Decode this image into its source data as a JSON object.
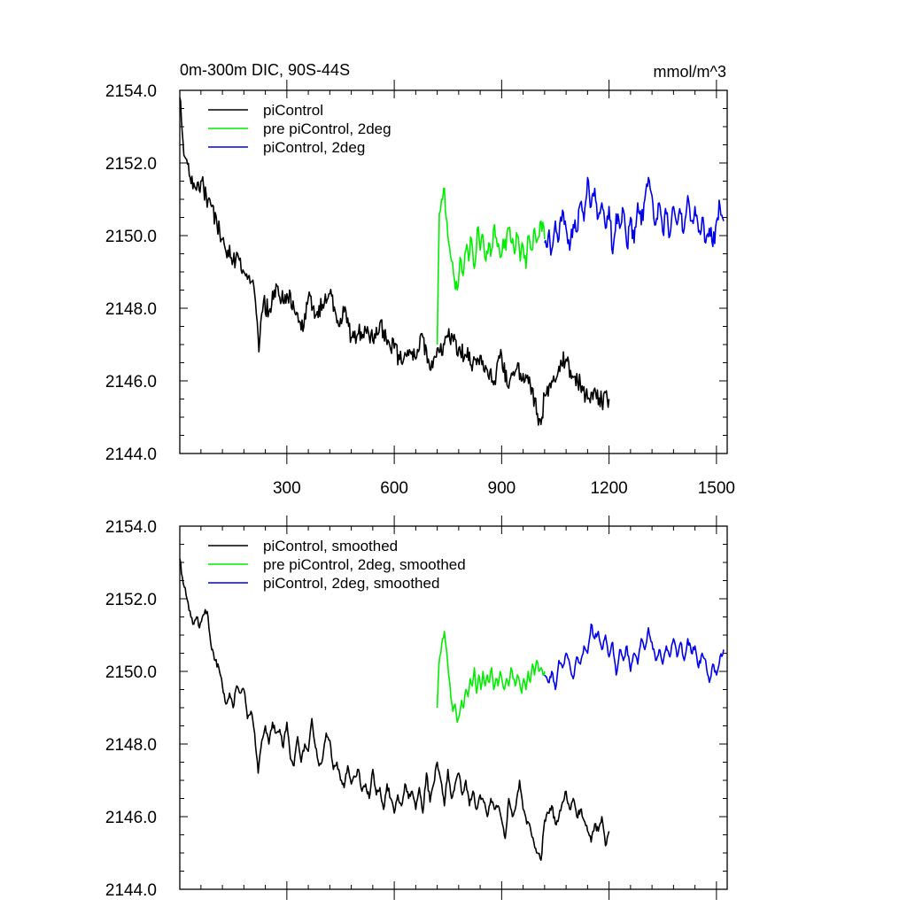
{
  "figure": {
    "title": "0m-300m DIC, 90S-44S",
    "units": "mmol/m^3"
  },
  "chart_data": [
    {
      "type": "line",
      "title": "0m-300m DIC, 90S-44S",
      "units_label": "mmol/m^3",
      "xlim": [
        1,
        1530
      ],
      "ylim": [
        2144.0,
        2154.0
      ],
      "x_ticks": [
        300,
        600,
        900,
        1200,
        1500
      ],
      "x_tick_labels": [
        "300",
        "600",
        "900",
        "1200",
        "1500"
      ],
      "y_ticks": [
        2144.0,
        2146.0,
        2148.0,
        2150.0,
        2152.0,
        2154.0
      ],
      "y_tick_labels": [
        "2144.0",
        "2146.0",
        "2148.0",
        "2150.0",
        "2152.0",
        "2154.0"
      ],
      "legend_position": "top-left",
      "series": [
        {
          "name": "piControl",
          "color": "#000000",
          "x": [
            1,
            10,
            20,
            30,
            45,
            60,
            75,
            90,
            105,
            120,
            135,
            150,
            165,
            180,
            195,
            210,
            222,
            235,
            250,
            265,
            280,
            300,
            320,
            340,
            360,
            380,
            400,
            420,
            440,
            460,
            480,
            500,
            520,
            540,
            560,
            580,
            600,
            620,
            640,
            660,
            680,
            700,
            720,
            740,
            760,
            780,
            800,
            820,
            840,
            860,
            880,
            900,
            920,
            940,
            960,
            980,
            1000,
            1010,
            1020,
            1040,
            1060,
            1080,
            1100,
            1120,
            1140,
            1160,
            1180,
            1200
          ],
          "values": [
            2153.8,
            2152.6,
            2152.1,
            2151.6,
            2151.3,
            2151.5,
            2151.1,
            2150.8,
            2150.3,
            2149.9,
            2149.6,
            2149.3,
            2149.4,
            2149.0,
            2148.9,
            2148.4,
            2146.8,
            2148.2,
            2147.9,
            2148.5,
            2148.3,
            2148.4,
            2148.0,
            2147.4,
            2148.3,
            2147.8,
            2148.1,
            2148.4,
            2147.6,
            2147.9,
            2147.2,
            2147.3,
            2147.4,
            2147.1,
            2147.6,
            2147.0,
            2146.9,
            2146.5,
            2146.7,
            2146.6,
            2147.2,
            2146.3,
            2146.9,
            2147.0,
            2147.3,
            2146.9,
            2146.7,
            2146.5,
            2146.7,
            2146.3,
            2146.0,
            2146.7,
            2145.8,
            2146.3,
            2146.2,
            2145.9,
            2145.1,
            2144.8,
            2145.6,
            2146.0,
            2146.4,
            2146.6,
            2146.1,
            2145.9,
            2145.5,
            2145.8,
            2145.4,
            2145.5
          ]
        },
        {
          "name": "pre piControl, 2deg",
          "color": "#00ee00",
          "x": [
            720,
            726,
            732,
            738,
            745,
            752,
            760,
            768,
            776,
            784,
            792,
            800,
            808,
            816,
            824,
            832,
            840,
            848,
            856,
            864,
            872,
            880,
            888,
            896,
            904,
            912,
            920,
            928,
            936,
            944,
            952,
            960,
            968,
            976,
            984,
            992,
            1000,
            1010,
            1020
          ],
          "values": [
            2147.0,
            2150.6,
            2151.0,
            2151.3,
            2150.5,
            2149.8,
            2149.3,
            2148.8,
            2148.5,
            2149.4,
            2148.9,
            2149.6,
            2149.3,
            2149.9,
            2149.1,
            2150.2,
            2149.6,
            2150.0,
            2149.3,
            2149.8,
            2149.6,
            2150.3,
            2149.7,
            2149.4,
            2149.9,
            2149.6,
            2150.2,
            2149.8,
            2149.5,
            2150.0,
            2149.3,
            2149.7,
            2149.1,
            2150.0,
            2149.6,
            2150.2,
            2149.9,
            2150.4,
            2149.9
          ]
        },
        {
          "name": "piControl, 2deg",
          "color": "#0000ee",
          "x": [
            1020,
            1030,
            1040,
            1050,
            1060,
            1070,
            1080,
            1090,
            1100,
            1110,
            1120,
            1130,
            1140,
            1150,
            1160,
            1170,
            1180,
            1190,
            1200,
            1210,
            1220,
            1230,
            1240,
            1250,
            1260,
            1270,
            1280,
            1290,
            1300,
            1310,
            1320,
            1330,
            1340,
            1350,
            1360,
            1370,
            1380,
            1390,
            1400,
            1410,
            1420,
            1430,
            1440,
            1450,
            1460,
            1470,
            1480,
            1490,
            1500,
            1510,
            1520
          ],
          "values": [
            2149.8,
            2150.0,
            2149.6,
            2150.4,
            2149.9,
            2150.7,
            2150.2,
            2149.6,
            2150.3,
            2150.1,
            2150.9,
            2150.4,
            2151.6,
            2150.8,
            2151.3,
            2150.5,
            2150.9,
            2150.2,
            2150.8,
            2149.5,
            2150.6,
            2150.2,
            2150.7,
            2149.7,
            2150.5,
            2149.8,
            2150.9,
            2150.3,
            2151.0,
            2151.6,
            2151.1,
            2150.3,
            2150.9,
            2150.1,
            2150.6,
            2150.0,
            2150.8,
            2150.3,
            2150.6,
            2150.2,
            2151.1,
            2150.4,
            2150.8,
            2150.1,
            2150.5,
            2149.8,
            2150.2,
            2149.7,
            2150.4,
            2150.8,
            2150.4
          ]
        }
      ]
    },
    {
      "type": "line",
      "xlim": [
        1,
        1530
      ],
      "ylim": [
        2144.0,
        2154.0
      ],
      "y_ticks": [
        2144.0,
        2146.0,
        2148.0,
        2150.0,
        2152.0,
        2154.0
      ],
      "y_tick_labels": [
        "2144.0",
        "2146.0",
        "2148.0",
        "2150.0",
        "2152.0",
        "2154.0"
      ],
      "legend_position": "top-left",
      "series": [
        {
          "name": "piControl, smoothed",
          "color": "#000000",
          "x": [
            1,
            8,
            16,
            24,
            32,
            40,
            48,
            56,
            64,
            72,
            80,
            90,
            100,
            110,
            120,
            130,
            140,
            150,
            160,
            170,
            180,
            190,
            200,
            210,
            220,
            230,
            240,
            250,
            260,
            270,
            280,
            290,
            300,
            310,
            320,
            330,
            340,
            350,
            360,
            370,
            380,
            390,
            400,
            410,
            420,
            430,
            440,
            450,
            460,
            470,
            480,
            490,
            500,
            510,
            520,
            530,
            540,
            550,
            560,
            570,
            580,
            590,
            600,
            610,
            620,
            630,
            640,
            650,
            660,
            670,
            680,
            690,
            700,
            710,
            720,
            730,
            740,
            750,
            760,
            770,
            780,
            790,
            800,
            810,
            820,
            830,
            840,
            850,
            860,
            870,
            880,
            890,
            900,
            910,
            920,
            930,
            940,
            950,
            960,
            970,
            980,
            990,
            1000,
            1010,
            1020,
            1030,
            1040,
            1050,
            1060,
            1070,
            1080,
            1090,
            1100,
            1110,
            1120,
            1130,
            1140,
            1150,
            1160,
            1170,
            1180,
            1190,
            1200
          ],
          "values": [
            2153.1,
            2152.6,
            2152.3,
            2151.9,
            2151.5,
            2151.3,
            2151.5,
            2151.2,
            2151.5,
            2151.7,
            2151.5,
            2150.6,
            2150.3,
            2150.1,
            2149.6,
            2149.1,
            2149.4,
            2149.0,
            2149.6,
            2149.4,
            2149.5,
            2148.7,
            2148.9,
            2148.3,
            2147.2,
            2148.1,
            2148.5,
            2148.0,
            2148.6,
            2148.3,
            2148.4,
            2147.9,
            2148.6,
            2147.6,
            2147.4,
            2148.2,
            2147.5,
            2148.0,
            2147.8,
            2148.7,
            2147.9,
            2147.4,
            2147.6,
            2148.3,
            2148.1,
            2147.3,
            2147.5,
            2147.0,
            2146.8,
            2147.4,
            2146.9,
            2147.1,
            2147.3,
            2146.7,
            2146.9,
            2146.5,
            2147.3,
            2146.6,
            2146.8,
            2146.2,
            2146.9,
            2146.5,
            2146.1,
            2146.6,
            2146.3,
            2146.9,
            2146.5,
            2146.7,
            2146.2,
            2146.8,
            2146.1,
            2147.2,
            2146.4,
            2146.9,
            2147.5,
            2147.0,
            2146.3,
            2147.3,
            2146.5,
            2146.9,
            2147.2,
            2146.6,
            2147.0,
            2146.3,
            2146.7,
            2146.2,
            2146.6,
            2146.4,
            2146.0,
            2146.5,
            2146.2,
            2146.3,
            2145.9,
            2145.4,
            2146.5,
            2146.0,
            2146.3,
            2147.0,
            2146.2,
            2145.8,
            2145.7,
            2145.3,
            2145.0,
            2144.8,
            2145.9,
            2146.1,
            2146.3,
            2145.8,
            2146.0,
            2146.4,
            2146.7,
            2146.2,
            2146.5,
            2146.0,
            2146.2,
            2145.9,
            2145.6,
            2145.3,
            2145.8,
            2145.6,
            2146.0,
            2145.2,
            2145.6
          ]
        },
        {
          "name": "pre piControl, 2deg, smoothed",
          "color": "#00ee00",
          "x": [
            720,
            725,
            730,
            735,
            740,
            746,
            752,
            758,
            764,
            770,
            776,
            782,
            788,
            794,
            800,
            806,
            812,
            818,
            824,
            830,
            836,
            842,
            848,
            854,
            860,
            866,
            872,
            878,
            884,
            890,
            896,
            902,
            908,
            914,
            920,
            926,
            932,
            938,
            944,
            950,
            956,
            962,
            968,
            974,
            980,
            986,
            992,
            998,
            1004,
            1010,
            1016,
            1020
          ],
          "values": [
            2149.0,
            2150.2,
            2150.5,
            2150.9,
            2151.1,
            2150.6,
            2149.9,
            2149.3,
            2148.9,
            2149.1,
            2148.6,
            2148.8,
            2149.2,
            2149.0,
            2149.5,
            2149.3,
            2149.8,
            2149.6,
            2150.1,
            2149.4,
            2149.9,
            2149.5,
            2150.0,
            2149.6,
            2149.9,
            2149.7,
            2150.1,
            2149.5,
            2149.8,
            2149.6,
            2150.0,
            2149.7,
            2149.5,
            2149.8,
            2149.6,
            2150.1,
            2149.8,
            2149.6,
            2149.9,
            2149.7,
            2149.4,
            2149.8,
            2149.5,
            2150.0,
            2149.7,
            2150.2,
            2149.9,
            2150.3,
            2150.0,
            2150.1,
            2149.9,
            2150.0
          ]
        },
        {
          "name": "piControl, 2deg, smoothed",
          "color": "#0000ee",
          "x": [
            1020,
            1030,
            1040,
            1050,
            1060,
            1070,
            1080,
            1090,
            1100,
            1110,
            1120,
            1130,
            1140,
            1150,
            1160,
            1170,
            1180,
            1190,
            1200,
            1210,
            1220,
            1230,
            1240,
            1250,
            1260,
            1270,
            1280,
            1290,
            1300,
            1310,
            1320,
            1330,
            1340,
            1350,
            1360,
            1370,
            1380,
            1390,
            1400,
            1410,
            1420,
            1430,
            1440,
            1450,
            1460,
            1470,
            1480,
            1490,
            1500,
            1510,
            1520
          ],
          "values": [
            2149.9,
            2149.7,
            2150.0,
            2149.5,
            2150.3,
            2150.1,
            2150.5,
            2150.2,
            2149.8,
            2150.4,
            2150.2,
            2150.7,
            2150.5,
            2151.3,
            2150.9,
            2151.1,
            2150.6,
            2151.0,
            2150.4,
            2150.8,
            2149.9,
            2150.6,
            2150.3,
            2150.7,
            2150.0,
            2150.5,
            2150.2,
            2150.9,
            2150.6,
            2151.2,
            2150.8,
            2150.3,
            2150.6,
            2150.2,
            2150.7,
            2150.4,
            2150.9,
            2150.4,
            2150.8,
            2150.3,
            2150.9,
            2150.5,
            2150.7,
            2150.1,
            2150.5,
            2150.3,
            2149.7,
            2150.2,
            2149.9,
            2150.4,
            2150.6
          ]
        }
      ]
    }
  ]
}
